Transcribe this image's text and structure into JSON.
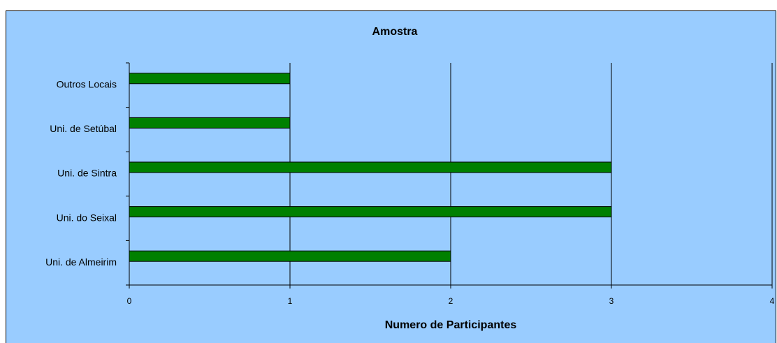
{
  "chart_data": {
    "type": "bar",
    "orientation": "horizontal",
    "title": "Amostra",
    "x_label": "Numero de Participantes",
    "categories": [
      "Uni. de Almeirim",
      "Uni. do Seixal",
      "Uni. de Sintra",
      "Uni. de Setúbal",
      "Outros Locais"
    ],
    "values": [
      2,
      3,
      3,
      1,
      1
    ],
    "color": "#008000",
    "xlim": [
      0,
      4
    ],
    "xticks": [
      0,
      1,
      2,
      3,
      4
    ],
    "grid": true
  }
}
